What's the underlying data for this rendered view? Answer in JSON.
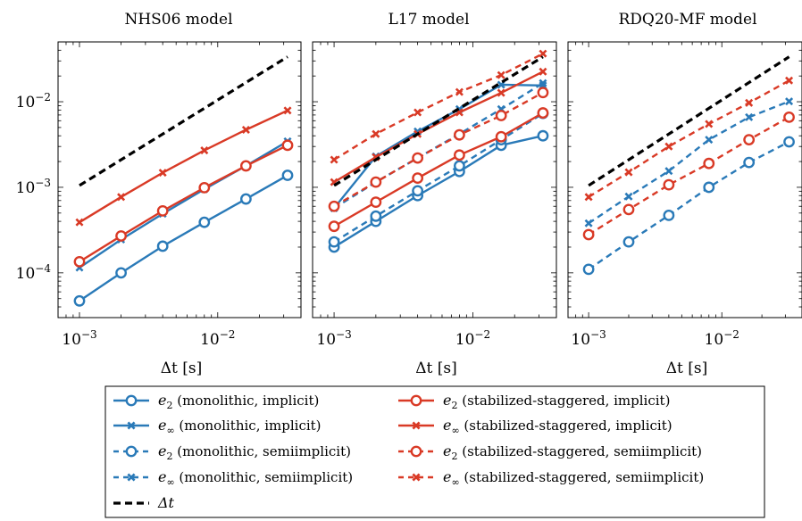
{
  "colors": {
    "blue": "#2a7ab8",
    "red": "#d93a26",
    "black": "#000000"
  },
  "chart_data": [
    {
      "type": "line",
      "title": "NHS06 model",
      "xlabel": "Δt [s]",
      "ylabel": "",
      "xscale": "log",
      "yscale": "log",
      "xlim": [
        0.0007,
        0.04
      ],
      "ylim": [
        3e-05,
        0.05
      ],
      "x_ticks": [
        "10^-3",
        "10^-2"
      ],
      "y_ticks": [
        "10^-4",
        "10^-3",
        "10^-2"
      ],
      "series": [
        {
          "name": "e2 (monolithic, implicit)",
          "key": "e2-mono-impl",
          "x": [
            0.001,
            0.002,
            0.004,
            0.008,
            0.016,
            0.032
          ],
          "y": [
            4.7e-05,
            0.0001,
            0.000205,
            0.00039,
            0.00073,
            0.00138
          ]
        },
        {
          "name": "e∞ (monolithic, implicit)",
          "key": "einf-mono-impl",
          "x": [
            0.001,
            0.002,
            0.004,
            0.008,
            0.016,
            0.032
          ],
          "y": [
            0.000115,
            0.000245,
            0.00049,
            0.00095,
            0.00178,
            0.00345
          ]
        },
        {
          "name": "e2 (stabilized-staggered, implicit)",
          "key": "e2-stag-impl",
          "x": [
            0.001,
            0.002,
            0.004,
            0.008,
            0.016,
            0.032
          ],
          "y": [
            0.000135,
            0.00027,
            0.00053,
            0.00099,
            0.00178,
            0.0031
          ]
        },
        {
          "name": "e∞ (stabilized-staggered, implicit)",
          "key": "einf-stag-impl",
          "x": [
            0.001,
            0.002,
            0.004,
            0.008,
            0.016,
            0.032
          ],
          "y": [
            0.00039,
            0.00077,
            0.00148,
            0.0027,
            0.0047,
            0.0079
          ]
        },
        {
          "name": "Δt",
          "key": "dt",
          "x": [
            0.001,
            0.032
          ],
          "y": [
            0.00105,
            0.0335
          ]
        }
      ]
    },
    {
      "type": "line",
      "title": "L17 model",
      "xlabel": "Δt [s]",
      "ylabel": "",
      "xscale": "log",
      "yscale": "log",
      "xlim": [
        0.0007,
        0.04
      ],
      "ylim": [
        3e-05,
        0.05
      ],
      "x_ticks": [
        "10^-3",
        "10^-2"
      ],
      "y_ticks": [],
      "series": [
        {
          "name": "e2 (monolithic, implicit)",
          "key": "e2-mono-impl",
          "x": [
            0.001,
            0.002,
            0.004,
            0.008,
            0.016,
            0.032
          ],
          "y": [
            0.0002,
            0.0004,
            0.0008,
            0.00153,
            0.0031,
            0.004
          ]
        },
        {
          "name": "e∞ (monolithic, implicit)",
          "key": "einf-mono-impl",
          "x": [
            0.001,
            0.002,
            0.004,
            0.008,
            0.016,
            0.032
          ],
          "y": [
            0.00057,
            0.0023,
            0.0045,
            0.0082,
            0.0158,
            0.0155
          ]
        },
        {
          "name": "e2 (monolithic, semiimplicit)",
          "key": "e2-mono-semi",
          "x": [
            0.001,
            0.002,
            0.004,
            0.008,
            0.016,
            0.032
          ],
          "y": [
            0.00023,
            0.00046,
            0.00091,
            0.00178,
            0.0036,
            0.0073
          ]
        },
        {
          "name": "e∞ (monolithic, semiimplicit)",
          "key": "einf-mono-semi",
          "x": [
            0.001,
            0.002,
            0.004,
            0.008,
            0.016,
            0.032
          ],
          "y": [
            0.00057,
            0.00115,
            0.0022,
            0.0042,
            0.0082,
            0.0165
          ]
        },
        {
          "name": "e2 (stabilized-staggered, implicit)",
          "key": "e2-stag-impl",
          "x": [
            0.001,
            0.002,
            0.004,
            0.008,
            0.016,
            0.032
          ],
          "y": [
            0.00035,
            0.00067,
            0.00128,
            0.00238,
            0.0039,
            0.0074
          ]
        },
        {
          "name": "e∞ (stabilized-staggered, implicit)",
          "key": "einf-stag-impl",
          "x": [
            0.001,
            0.002,
            0.004,
            0.008,
            0.016,
            0.032
          ],
          "y": [
            0.00115,
            0.00225,
            0.0042,
            0.0075,
            0.0127,
            0.0225
          ]
        },
        {
          "name": "e2 (stabilized-staggered, semiimplicit)",
          "key": "e2-stag-semi",
          "x": [
            0.001,
            0.002,
            0.004,
            0.008,
            0.016,
            0.032
          ],
          "y": [
            0.0006,
            0.00115,
            0.0022,
            0.0041,
            0.0069,
            0.0128
          ]
        },
        {
          "name": "e∞ (stabilized-staggered, semiimplicit)",
          "key": "einf-stag-semi",
          "x": [
            0.001,
            0.002,
            0.004,
            0.008,
            0.016,
            0.032
          ],
          "y": [
            0.0021,
            0.0042,
            0.0075,
            0.013,
            0.0205,
            0.0365
          ]
        },
        {
          "name": "Δt",
          "key": "dt",
          "x": [
            0.001,
            0.032
          ],
          "y": [
            0.00105,
            0.0335
          ]
        }
      ]
    },
    {
      "type": "line",
      "title": "RDQ20-MF model",
      "xlabel": "Δt [s]",
      "ylabel": "",
      "xscale": "log",
      "yscale": "log",
      "xlim": [
        0.0007,
        0.04
      ],
      "ylim": [
        3e-05,
        0.05
      ],
      "x_ticks": [
        "10^-3",
        "10^-2"
      ],
      "y_ticks": [],
      "series": [
        {
          "name": "e2 (monolithic, semiimplicit)",
          "key": "e2-mono-semi",
          "x": [
            0.001,
            0.002,
            0.004,
            0.008,
            0.016,
            0.032
          ],
          "y": [
            0.00011,
            0.00023,
            0.00047,
            0.001,
            0.00195,
            0.0034
          ]
        },
        {
          "name": "e∞ (monolithic, semiimplicit)",
          "key": "einf-mono-semi",
          "x": [
            0.001,
            0.002,
            0.004,
            0.008,
            0.016,
            0.032
          ],
          "y": [
            0.00038,
            0.00078,
            0.00155,
            0.0036,
            0.0066,
            0.0101
          ]
        },
        {
          "name": "e2 (stabilized-staggered, semiimplicit)",
          "key": "e2-stag-semi",
          "x": [
            0.001,
            0.002,
            0.004,
            0.008,
            0.016,
            0.032
          ],
          "y": [
            0.00028,
            0.00055,
            0.00107,
            0.0019,
            0.0036,
            0.0066
          ]
        },
        {
          "name": "e∞ (stabilized-staggered, semiimplicit)",
          "key": "einf-stag-semi",
          "x": [
            0.001,
            0.002,
            0.004,
            0.008,
            0.016,
            0.032
          ],
          "y": [
            0.00077,
            0.0015,
            0.003,
            0.0055,
            0.0097,
            0.0177
          ]
        },
        {
          "name": "Δt",
          "key": "dt",
          "x": [
            0.001,
            0.032
          ],
          "y": [
            0.00105,
            0.0335
          ]
        }
      ]
    }
  ],
  "legend": {
    "placement": "bottom",
    "entries": [
      {
        "key": "e2-mono-impl",
        "sym": "e",
        "sub": "2",
        "text": " (monolithic, implicit)",
        "color": "blue",
        "dash": "solid",
        "marker": "circle"
      },
      {
        "key": "e2-stag-impl",
        "sym": "e",
        "sub": "2",
        "text": " (stabilized-staggered, implicit)",
        "color": "red",
        "dash": "solid",
        "marker": "circle"
      },
      {
        "key": "einf-mono-impl",
        "sym": "e",
        "sub": "∞",
        "text": " (monolithic, implicit)",
        "color": "blue",
        "dash": "solid",
        "marker": "cross"
      },
      {
        "key": "einf-stag-impl",
        "sym": "e",
        "sub": "∞",
        "text": " (stabilized-staggered, implicit)",
        "color": "red",
        "dash": "solid",
        "marker": "cross"
      },
      {
        "key": "e2-mono-semi",
        "sym": "e",
        "sub": "2",
        "text": " (monolithic, semiimplicit)",
        "color": "blue",
        "dash": "dashed",
        "marker": "circle"
      },
      {
        "key": "e2-stag-semi",
        "sym": "e",
        "sub": "2",
        "text": " (stabilized-staggered, semiimplicit)",
        "color": "red",
        "dash": "dashed",
        "marker": "circle"
      },
      {
        "key": "einf-mono-semi",
        "sym": "e",
        "sub": "∞",
        "text": " (monolithic, semiimplicit)",
        "color": "blue",
        "dash": "dashed",
        "marker": "cross"
      },
      {
        "key": "einf-stag-semi",
        "sym": "e",
        "sub": "∞",
        "text": " (stabilized-staggered, semiimplicit)",
        "color": "red",
        "dash": "dashed",
        "marker": "cross"
      },
      {
        "key": "dt",
        "sym": "Δt",
        "sub": "",
        "text": "",
        "color": "black",
        "dash": "ref",
        "marker": "none"
      }
    ]
  }
}
